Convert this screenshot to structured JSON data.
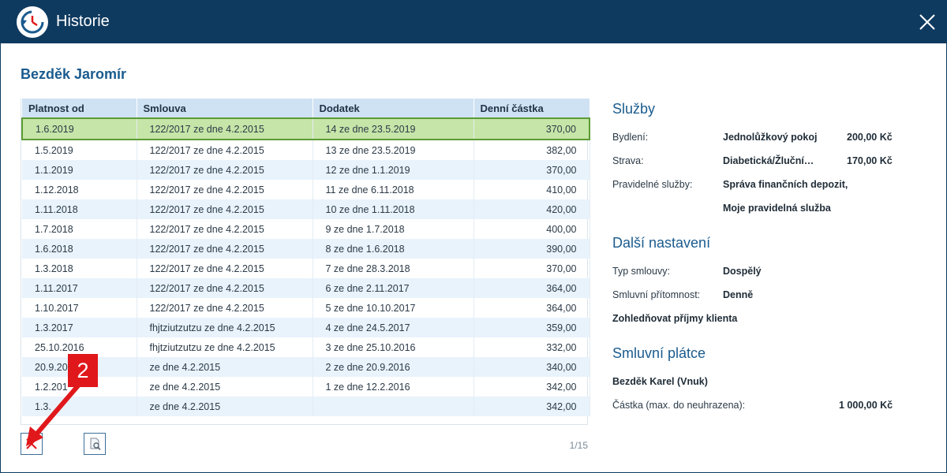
{
  "window": {
    "title": "Historie"
  },
  "client": {
    "name": "Bezděk Jaromír"
  },
  "table": {
    "headers": [
      "Platnost od",
      "Smlouva",
      "Dodatek",
      "Denní částka"
    ],
    "rows": [
      [
        "1.6.2019",
        "122/2017 ze dne 4.2.2015",
        "14 ze dne 23.5.2019",
        "370,00"
      ],
      [
        "1.5.2019",
        "122/2017 ze dne 4.2.2015",
        "13 ze dne 23.5.2019",
        "382,00"
      ],
      [
        "1.1.2019",
        "122/2017 ze dne 4.2.2015",
        "12 ze dne 1.1.2019",
        "370,00"
      ],
      [
        "1.12.2018",
        "122/2017 ze dne 4.2.2015",
        "11 ze dne 6.11.2018",
        "410,00"
      ],
      [
        "1.11.2018",
        "122/2017 ze dne 4.2.2015",
        "10 ze dne 1.11.2018",
        "420,00"
      ],
      [
        "1.7.2018",
        "122/2017 ze dne 4.2.2015",
        "9 ze dne 1.7.2018",
        "400,00"
      ],
      [
        "1.6.2018",
        "122/2017 ze dne 4.2.2015",
        "8 ze dne 1.6.2018",
        "390,00"
      ],
      [
        "1.3.2018",
        "122/2017 ze dne 4.2.2015",
        "7 ze dne 28.3.2018",
        "370,00"
      ],
      [
        "1.11.2017",
        "122/2017 ze dne 4.2.2015",
        "6 ze dne 2.11.2017",
        "364,00"
      ],
      [
        "1.10.2017",
        "122/2017 ze dne 4.2.2015",
        "5 ze dne 10.10.2017",
        "364,00"
      ],
      [
        "1.3.2017",
        "fhjtziutzutzu ze dne 4.2.2015",
        "4 ze dne 24.5.2017",
        "359,00"
      ],
      [
        "25.10.2016",
        "fhjtziutzutzu ze dne 4.2.2015",
        "3 ze dne 25.10.2016",
        "332,00"
      ],
      [
        "20.9.20",
        "ze dne 4.2.2015",
        "2 ze dne 20.9.2016",
        "340,00"
      ],
      [
        "1.2.201",
        "ze dne 4.2.2015",
        "1 ze dne 12.2.2016",
        "342,00"
      ],
      [
        "1.3.",
        "ze dne 4.2.2015",
        "",
        "342,00"
      ]
    ]
  },
  "pager": {
    "text": "1/15"
  },
  "sluzby": {
    "title": "Služby",
    "bydleni_label": "Bydlení:",
    "bydleni_value": "Jednolůžkový pokoj",
    "bydleni_amount": "200,00 Kč",
    "strava_label": "Strava:",
    "strava_value": "Diabetická/Žluční…",
    "strava_amount": "170,00 Kč",
    "pravidelne_label": "Pravidelné služby:",
    "pravidelne_value1": "Správa finančních depozit,",
    "pravidelne_value2": "Moje pravidelná služba"
  },
  "dalsi": {
    "title": "Další nastavení",
    "typ_label": "Typ smlouvy:",
    "typ_value": "Dospělý",
    "pritomnost_label": "Smluvní přítomnost:",
    "pritomnost_value": "Denně",
    "prijmy_label": "Zohledňovat příjmy klienta"
  },
  "platce": {
    "title": "Smluvní plátce",
    "name": "Bezděk Karel (Vnuk)",
    "castka_label": "Částka (max. do neuhrazena):",
    "castka_value": "1 000,00 Kč"
  },
  "annotation": {
    "badge": "2"
  },
  "icons": {
    "logo": "history-clock-icon",
    "close": "close-icon",
    "delete": "delete-x-icon",
    "preview": "document-preview-icon"
  },
  "colors": {
    "titlebar": "#0f3a5f",
    "accent": "#1a5b8e",
    "selected_row": "#c6e5a8",
    "annotation": "#e0181b"
  }
}
